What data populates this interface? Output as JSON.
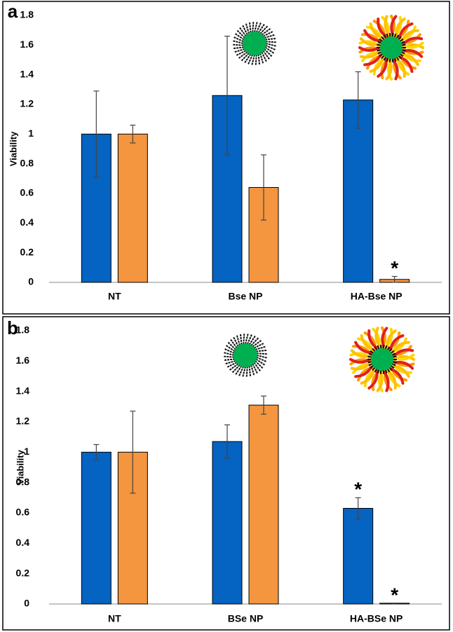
{
  "chart_data": [
    {
      "type": "bar",
      "panel": "a",
      "y_label": "Viability",
      "categories": [
        "NT",
        "Bse NP",
        "HA-Bse NP"
      ],
      "series": [
        {
          "color": "#0563c1",
          "values": [
            1.0,
            1.26,
            1.23
          ],
          "errors": [
            0.29,
            0.4,
            0.19
          ],
          "notes": [
            null,
            null,
            null
          ]
        },
        {
          "color": "#f4953f",
          "values": [
            1.0,
            0.64,
            0.02
          ],
          "errors": [
            0.06,
            0.22,
            0.02
          ],
          "notes": [
            null,
            null,
            "*"
          ]
        }
      ],
      "ylim": [
        0,
        1.8
      ],
      "yticks": [
        0,
        0.2,
        0.4,
        0.6,
        0.8,
        1,
        1.2,
        1.4,
        1.6,
        1.8
      ],
      "grid": false
    },
    {
      "type": "bar",
      "panel": "b",
      "y_label": "Viability",
      "categories": [
        "NT",
        "BSe NP",
        "HA-BSe NP"
      ],
      "series": [
        {
          "color": "#0563c1",
          "values": [
            1.0,
            1.07,
            0.63
          ],
          "errors": [
            0.05,
            0.11,
            0.07
          ],
          "notes": [
            null,
            null,
            "*"
          ]
        },
        {
          "color": "#f4953f",
          "values": [
            1.0,
            1.31,
            0.005
          ],
          "errors": [
            0.27,
            0.06,
            0
          ],
          "notes": [
            null,
            null,
            "*"
          ]
        }
      ],
      "ylim": [
        0,
        1.8
      ],
      "yticks": [
        0,
        0.2,
        0.4,
        0.6,
        0.8,
        1,
        1.2,
        1.4,
        1.6,
        1.8
      ],
      "grid": false
    }
  ]
}
